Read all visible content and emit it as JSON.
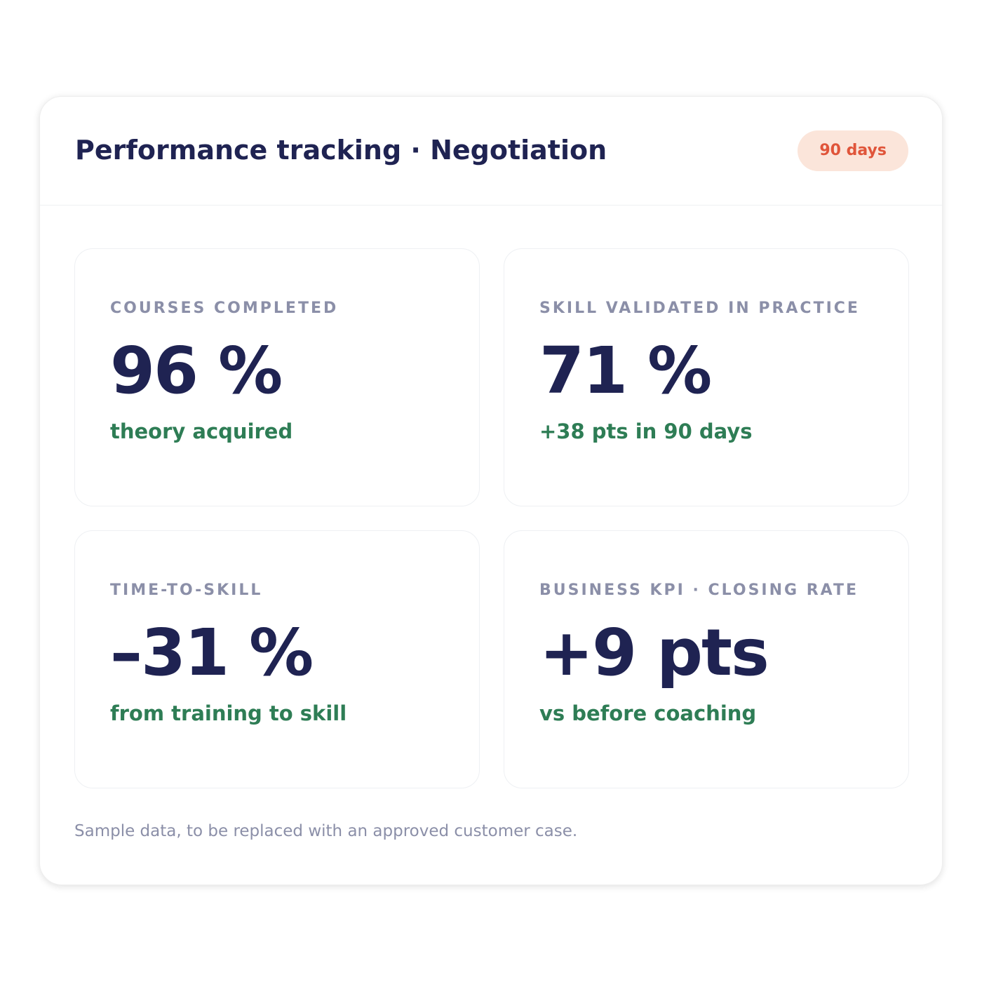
{
  "header": {
    "title": "Performance tracking · Negotiation",
    "badge": "90 days"
  },
  "cards": [
    {
      "label": "COURSES COMPLETED",
      "value": "96 %",
      "note": "theory acquired"
    },
    {
      "label": "SKILL VALIDATED IN PRACTICE",
      "value": "71 %",
      "note": "+38 pts in 90 days"
    },
    {
      "label": "TIME-TO-SKILL",
      "value": "–31 %",
      "note": "from training to skill"
    },
    {
      "label": "BUSINESS KPI · CLOSING RATE",
      "value": "+9 pts",
      "note": "vs before coaching"
    }
  ],
  "footer": "Sample data, to be replaced with an approved customer case."
}
